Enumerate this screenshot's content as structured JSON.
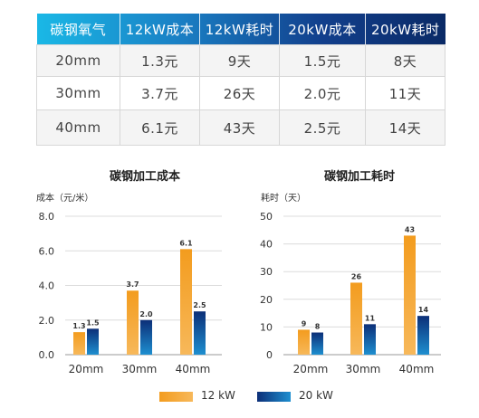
{
  "table": {
    "headers": [
      "碳钢氧气",
      "12kW成本",
      "12kW耗时",
      "20kW成本",
      "20kW耗时"
    ],
    "rows": [
      [
        "20mm",
        "1.3元",
        "9天",
        "1.5元",
        "8天"
      ],
      [
        "30mm",
        "3.7元",
        "26天",
        "2.0元",
        "11天"
      ],
      [
        "40mm",
        "6.1元",
        "43天",
        "2.5元",
        "14天"
      ]
    ]
  },
  "colors": {
    "orange": "#f39c1e",
    "navy": "#0c2f78",
    "blue_light": "#1e8fd0",
    "header_start": "#1ab8e6",
    "header_end": "#0a2a66"
  },
  "chart_data": [
    {
      "type": "bar",
      "title": "碳钢加工成本",
      "ylabel": "成本（元/米）",
      "xlabel": "",
      "categories": [
        "20mm",
        "30mm",
        "40mm"
      ],
      "series": [
        {
          "name": "12 kW",
          "values": [
            1.3,
            3.7,
            6.1
          ]
        },
        {
          "name": "20 kW",
          "values": [
            1.5,
            2.0,
            2.5
          ]
        }
      ],
      "ylim": [
        0,
        8
      ],
      "yticks": [
        0,
        2,
        4,
        6,
        8
      ],
      "ytick_labels": [
        "0.0",
        "2.0",
        "4.0",
        "6.0",
        "8.0"
      ],
      "value_labels": [
        [
          "1.3",
          "3.7",
          "6.1"
        ],
        [
          "1.5",
          "2.0",
          "2.5"
        ]
      ],
      "grid": true
    },
    {
      "type": "bar",
      "title": "碳钢加工耗时",
      "ylabel": "耗时（天）",
      "xlabel": "",
      "categories": [
        "20mm",
        "30mm",
        "40mm"
      ],
      "series": [
        {
          "name": "12 kW",
          "values": [
            9,
            26,
            43
          ]
        },
        {
          "name": "20 kW",
          "values": [
            8,
            11,
            14
          ]
        }
      ],
      "ylim": [
        0,
        50
      ],
      "yticks": [
        0,
        10,
        20,
        30,
        40,
        50
      ],
      "ytick_labels": [
        "0",
        "10",
        "20",
        "30",
        "40",
        "50"
      ],
      "value_labels": [
        [
          "9",
          "26",
          "43"
        ],
        [
          "8",
          "11",
          "14"
        ]
      ],
      "grid": true
    }
  ],
  "legend": {
    "items": [
      "12 kW",
      "20 kW"
    ],
    "placement": "bottom-center"
  }
}
